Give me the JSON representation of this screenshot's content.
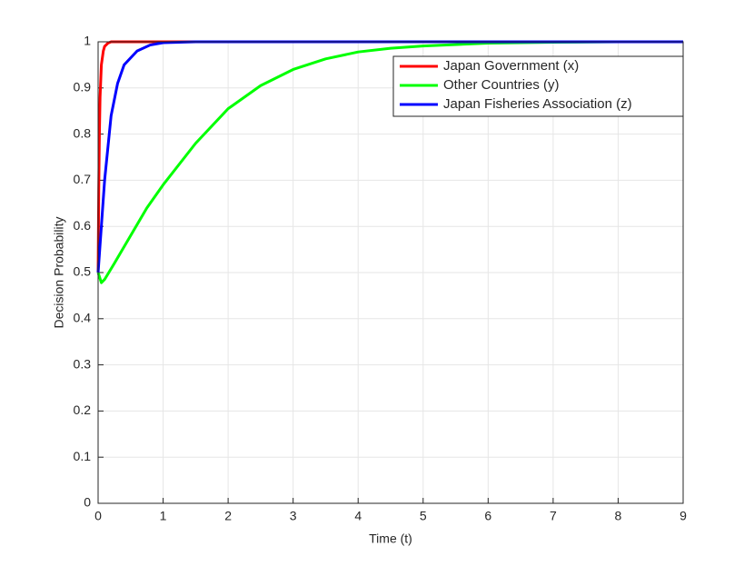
{
  "chart_data": {
    "type": "line",
    "x_label": "Time (t)",
    "y_label": "Decision Probability",
    "xlim": [
      0,
      9
    ],
    "ylim": [
      0,
      1
    ],
    "xticks": [
      0,
      1,
      2,
      3,
      4,
      5,
      6,
      7,
      8,
      9
    ],
    "yticks": [
      0,
      0.1,
      0.2,
      0.3,
      0.4,
      0.5,
      0.6,
      0.7,
      0.8,
      0.9,
      1
    ],
    "grid": true,
    "legend": "northeast",
    "series": [
      {
        "name": "Japan Government (x)",
        "color": "#ff0000",
        "x": [
          0,
          0.01,
          0.02,
          0.03,
          0.05,
          0.08,
          0.1,
          0.15,
          0.2,
          1,
          9
        ],
        "values": [
          0.5,
          0.68,
          0.8,
          0.88,
          0.95,
          0.98,
          0.99,
          0.997,
          1,
          1,
          1
        ]
      },
      {
        "name": "Other Countries (y)",
        "color": "#00ff00",
        "x": [
          0,
          0.05,
          0.1,
          0.25,
          0.5,
          0.75,
          1,
          1.5,
          2,
          2.5,
          3,
          3.5,
          4,
          4.5,
          5,
          6,
          7,
          8,
          9
        ],
        "values": [
          0.5,
          0.478,
          0.485,
          0.52,
          0.58,
          0.64,
          0.69,
          0.78,
          0.855,
          0.905,
          0.94,
          0.963,
          0.978,
          0.986,
          0.991,
          0.997,
          0.999,
          1,
          1
        ]
      },
      {
        "name": "Japan Fisheries Association (z)",
        "color": "#0000ff",
        "x": [
          0,
          0.05,
          0.1,
          0.2,
          0.3,
          0.4,
          0.6,
          0.8,
          1,
          1.5,
          9
        ],
        "values": [
          0.5,
          0.6,
          0.7,
          0.84,
          0.91,
          0.95,
          0.98,
          0.993,
          0.998,
          1,
          1
        ]
      }
    ]
  }
}
